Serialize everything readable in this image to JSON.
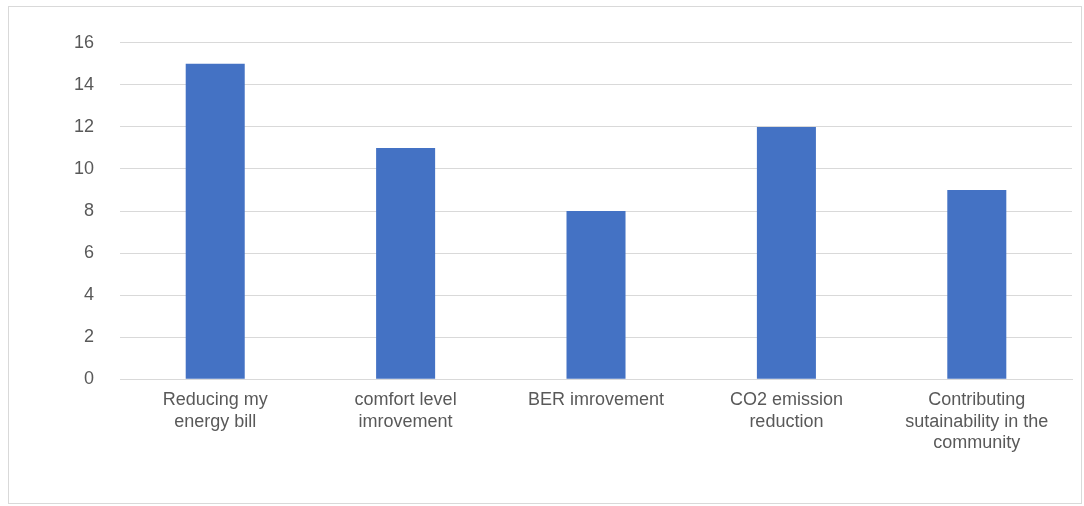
{
  "chart_data": {
    "type": "bar",
    "categories": [
      "Reducing my energy bill",
      "comfort level imrovement",
      "BER imrovement",
      "CO2 emission reduction",
      "Contributing sutainability in the community"
    ],
    "values": [
      15,
      11,
      8,
      12,
      9
    ],
    "color": "#4472c4",
    "ylim": [
      0,
      16
    ],
    "yticks": [
      0,
      2,
      4,
      6,
      8,
      10,
      12,
      14,
      16
    ],
    "grid": "y",
    "legend": false
  }
}
